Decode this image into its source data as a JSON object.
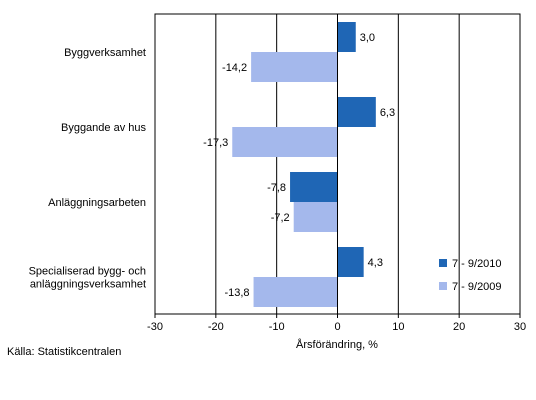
{
  "chart_data": {
    "type": "bar",
    "orientation": "horizontal",
    "categories": [
      [
        "Byggverksamhet"
      ],
      [
        "Byggande av hus"
      ],
      [
        "Anläggningsarbeten"
      ],
      [
        "Specialiserad bygg- och",
        "anläggningsverksamhet"
      ]
    ],
    "series": [
      {
        "name": "7 - 9/2010",
        "color": "#1f66b5",
        "values": [
          3.0,
          6.3,
          -7.8,
          4.3
        ],
        "labels": [
          "3,0",
          "6,3",
          "-7,8",
          "4,3"
        ]
      },
      {
        "name": "7 - 9/2009",
        "color": "#a4b8ec",
        "values": [
          -14.2,
          -17.3,
          -7.2,
          -13.8
        ],
        "labels": [
          "-14,2",
          "-17,3",
          "-7,2",
          "-13,8"
        ]
      }
    ],
    "xlabel": "Årsförändring, %",
    "xlim": [
      -30,
      30
    ],
    "xticks": [
      -30,
      -20,
      -10,
      0,
      10,
      20,
      30
    ],
    "legend_position": "bottom-right",
    "grid": "vertical"
  },
  "source": "Källa: Statistikcentralen"
}
